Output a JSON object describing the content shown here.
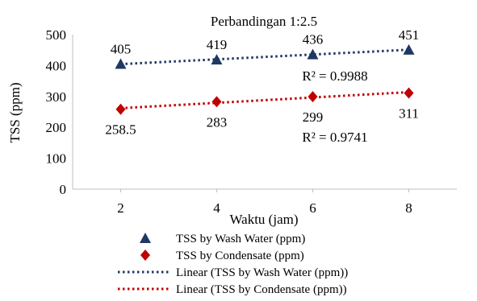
{
  "chart_data": {
    "type": "scatter",
    "title": "Perbandingan 1:2.5",
    "xlabel": "Waktu (jam)",
    "ylabel": "TSS (ppm)",
    "ylim": [
      0,
      500
    ],
    "xlim": [
      1,
      9
    ],
    "x_ticks": [
      2,
      4,
      6,
      8
    ],
    "y_ticks": [
      0,
      100,
      200,
      300,
      400,
      500
    ],
    "grid": false,
    "legend_position": "bottom",
    "x": [
      2,
      4,
      6,
      8
    ],
    "series": [
      {
        "name": "TSS by Wash Water (ppm)",
        "values": [
          405,
          419,
          436,
          451
        ],
        "data_labels": [
          "405",
          "419",
          "436",
          "451"
        ],
        "marker": "triangle",
        "color": "#1F3864"
      },
      {
        "name": "TSS by Condensate (ppm)",
        "values": [
          258.5,
          283,
          299,
          311
        ],
        "data_labels": [
          "258.5",
          "283",
          "299",
          "311"
        ],
        "marker": "diamond",
        "color": "#C00000"
      }
    ],
    "trendlines": [
      {
        "name": "Linear (TSS by Wash Water (ppm))",
        "type": "linear",
        "of_series": 0,
        "r2_label": "R² = 0.9988",
        "style": "dotted",
        "color": "#1F3864"
      },
      {
        "name": "Linear (TSS by Condensate (ppm))",
        "type": "linear",
        "of_series": 1,
        "r2_label": "R² = 0.9741",
        "style": "dotted",
        "color": "#C00000"
      }
    ]
  }
}
